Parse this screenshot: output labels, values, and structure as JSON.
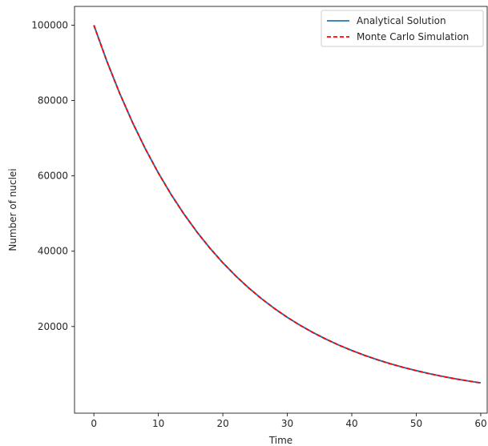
{
  "chart_data": {
    "type": "line",
    "title": "",
    "xlabel": "Time",
    "ylabel": "Number of nuclei",
    "xlim": [
      -3,
      61
    ],
    "ylim": [
      -3000,
      105000
    ],
    "xticks": [
      0,
      10,
      20,
      30,
      40,
      50,
      60
    ],
    "yticks": [
      20000,
      40000,
      60000,
      80000,
      100000
    ],
    "xtick_labels": [
      "0",
      "10",
      "20",
      "30",
      "40",
      "50",
      "60"
    ],
    "ytick_labels": [
      "20000",
      "40000",
      "60000",
      "80000",
      "100000"
    ],
    "grid": false,
    "legend_position": "top-right",
    "series": [
      {
        "name": "Analytical Solution",
        "style": "solid",
        "color": "#1f77b4",
        "x": [
          0,
          2,
          4,
          6,
          8,
          10,
          12,
          14,
          16,
          18,
          20,
          22,
          24,
          26,
          28,
          30,
          32,
          34,
          36,
          38,
          40,
          42,
          44,
          46,
          48,
          50,
          52,
          54,
          56,
          58,
          60
        ],
        "y": [
          100000,
          90520,
          81940,
          74170,
          67140,
          60780,
          55020,
          49800,
          45080,
          40810,
          36940,
          33440,
          30270,
          27400,
          24800,
          22450,
          20320,
          18400,
          16650,
          15070,
          13640,
          12350,
          11180,
          10120,
          9160,
          8290,
          7510,
          6790,
          6150,
          5570,
          5040
        ]
      },
      {
        "name": "Monte Carlo Simulation",
        "style": "dashed",
        "color": "#ff0000",
        "x": [
          0,
          2,
          4,
          6,
          8,
          10,
          12,
          14,
          16,
          18,
          20,
          22,
          24,
          26,
          28,
          30,
          32,
          34,
          36,
          38,
          40,
          42,
          44,
          46,
          48,
          50,
          52,
          54,
          56,
          58,
          60
        ],
        "y": [
          100000,
          90500,
          81920,
          74160,
          67120,
          60760,
          55000,
          49790,
          45070,
          40800,
          36930,
          33430,
          30260,
          27390,
          24790,
          22440,
          20310,
          18390,
          16640,
          15060,
          13630,
          12340,
          11170,
          10110,
          9150,
          8280,
          7500,
          6780,
          6140,
          5560,
          5030
        ]
      }
    ]
  }
}
